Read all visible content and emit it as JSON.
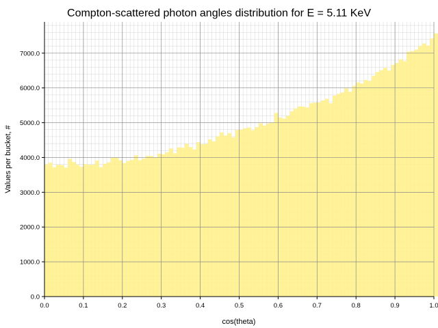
{
  "chart_data": {
    "type": "bar",
    "title": "Compton-scattered photon angles distribution for E = 5.11 KeV",
    "xlabel": "cos(theta)",
    "ylabel": "Values per bucket, #",
    "xlim": [
      0.0,
      1.0
    ],
    "ylim": [
      0,
      7900
    ],
    "x_ticks": [
      "0.0",
      "0.1",
      "0.2",
      "0.3",
      "0.4",
      "0.5",
      "0.6",
      "0.7",
      "0.8",
      "0.9",
      "1.0"
    ],
    "y_ticks": [
      "0.0",
      "1000.0",
      "2000.0",
      "3000.0",
      "4000.0",
      "5000.0",
      "6000.0",
      "7000.0"
    ],
    "grid": true,
    "bin_width": 0.01,
    "bar_color": "#fff08a",
    "values": [
      3800,
      3850,
      3720,
      3790,
      3780,
      3710,
      3960,
      3870,
      3790,
      3730,
      3810,
      3790,
      3790,
      3910,
      3720,
      3820,
      3860,
      3990,
      3990,
      3920,
      3840,
      3900,
      3930,
      4060,
      3920,
      3970,
      4050,
      4040,
      3990,
      4110,
      4090,
      4150,
      4260,
      4120,
      4290,
      4280,
      4390,
      4300,
      4230,
      4440,
      4380,
      4390,
      4520,
      4460,
      4610,
      4720,
      4630,
      4700,
      4580,
      4790,
      4800,
      4840,
      4860,
      4780,
      4870,
      4980,
      4920,
      4980,
      5010,
      5280,
      5150,
      5120,
      5200,
      5330,
      5410,
      5470,
      5460,
      5440,
      5560,
      5580,
      5580,
      5640,
      5690,
      5560,
      5780,
      5830,
      5870,
      5990,
      5890,
      6060,
      6160,
      6130,
      6230,
      6200,
      6350,
      6460,
      6510,
      6580,
      6500,
      6660,
      6720,
      6820,
      6770,
      7040,
      7060,
      7100,
      7210,
      7280,
      7220,
      7420,
      7570
    ]
  }
}
